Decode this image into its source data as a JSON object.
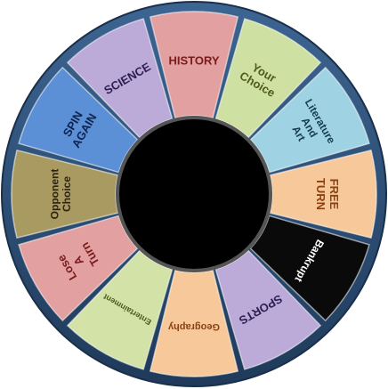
{
  "wheel": {
    "ring_color": "#2f4e73",
    "hub_color": "#000000",
    "segments": [
      {
        "label": "HISTORY",
        "color": "#e3a0a0",
        "text_color": "#7a1c1c"
      },
      {
        "label": "Your Choice",
        "color": "#cfe0a3",
        "text_color": "#4e5b1a"
      },
      {
        "label": "Literature And Art",
        "color": "#9fd3e3",
        "text_color": "#153d52"
      },
      {
        "label": "FREE TURN",
        "color": "#f7c99a",
        "text_color": "#8a4212"
      },
      {
        "label": "Bankrupt",
        "color": "#0a0a0a",
        "text_color": "#ffffff"
      },
      {
        "label": "SPORTS",
        "color": "#bcaad8",
        "text_color": "#2e1f52"
      },
      {
        "label": "Geography",
        "color": "#f7c99a",
        "text_color": "#8a4212"
      },
      {
        "label": "Entertainment",
        "color": "#d3e3a8",
        "text_color": "#4e5b1a"
      },
      {
        "label": "Lose A Turn",
        "color": "#e3a0a0",
        "text_color": "#7a1c1c"
      },
      {
        "label": "Opponent Choice",
        "color": "#a99a62",
        "text_color": "#2b2410"
      },
      {
        "label": "SPIN AGAIN",
        "color": "#5b90d6",
        "text_color": "#0e2450"
      },
      {
        "label": "SCIENCE",
        "color": "#bcaad8",
        "text_color": "#2e1f52"
      }
    ]
  }
}
